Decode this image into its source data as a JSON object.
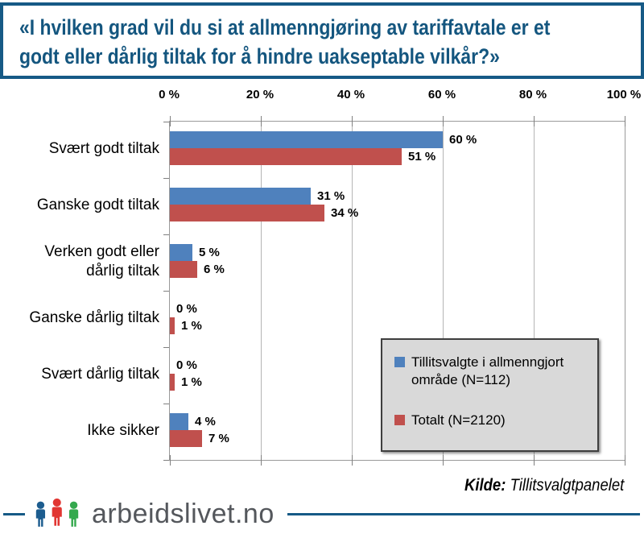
{
  "title": {
    "text": "«I hvilken grad vil du si at allmenngjøring av tariffavtale er et\ngodt eller dårlig tiltak for å hindre uakseptable vilkår?»"
  },
  "chart_data": {
    "type": "bar",
    "orientation": "horizontal",
    "title": "«I hvilken grad vil du si at allmenngjøring av tariffavtale er et godt eller dårlig tiltak for å hindre uakseptable vilkår?»",
    "categories": [
      "Svært godt tiltak",
      "Ganske godt tiltak",
      "Verken godt eller dårlig tiltak",
      "Ganske dårlig tiltak",
      "Svært dårlig tiltak",
      "Ikke sikker"
    ],
    "series": [
      {
        "name": "Tillitsvalgte i allmenngjort område (N=112)",
        "color": "#4F81BD",
        "values": [
          60,
          31,
          5,
          0,
          0,
          4
        ],
        "value_labels": [
          "60 %",
          "31 %",
          "5 %",
          "0 %",
          "0 %",
          "4 %"
        ]
      },
      {
        "name": "Totalt (N=2120)",
        "color": "#C0504D",
        "values": [
          51,
          34,
          6,
          1,
          1,
          7
        ],
        "value_labels": [
          "51 %",
          "34 %",
          "6 %",
          "1 %",
          "1 %",
          "7 %"
        ]
      }
    ],
    "xlim": [
      0,
      100
    ],
    "x_tick_labels": [
      "0 %",
      "20 %",
      "40 %",
      "60 %",
      "80 %",
      "100 %"
    ],
    "grid": true,
    "legend_position": "inside-bottom-right"
  },
  "legend": {
    "items": [
      {
        "label": "Tillitsvalgte i allmenngjort område (N=112)",
        "color": "#4F81BD"
      },
      {
        "label": "Totalt (N=2120)",
        "color": "#C0504D"
      }
    ]
  },
  "source": {
    "label": "Kilde:",
    "text": "Tillitsvalgtpanelet"
  },
  "footer": {
    "logo_text": "arbeidslivet.no",
    "logo_colors": {
      "person1": "#1d5d8f",
      "person2": "#e13632",
      "person3": "#35a94e",
      "rule": "#165a86"
    }
  },
  "colors": {
    "frame_border": "#165a86",
    "title_text": "#14567f",
    "series_blue": "#4F81BD",
    "series_red": "#C0504D",
    "legend_background": "#d9d9d9",
    "gridline": "#b5b5b5"
  }
}
